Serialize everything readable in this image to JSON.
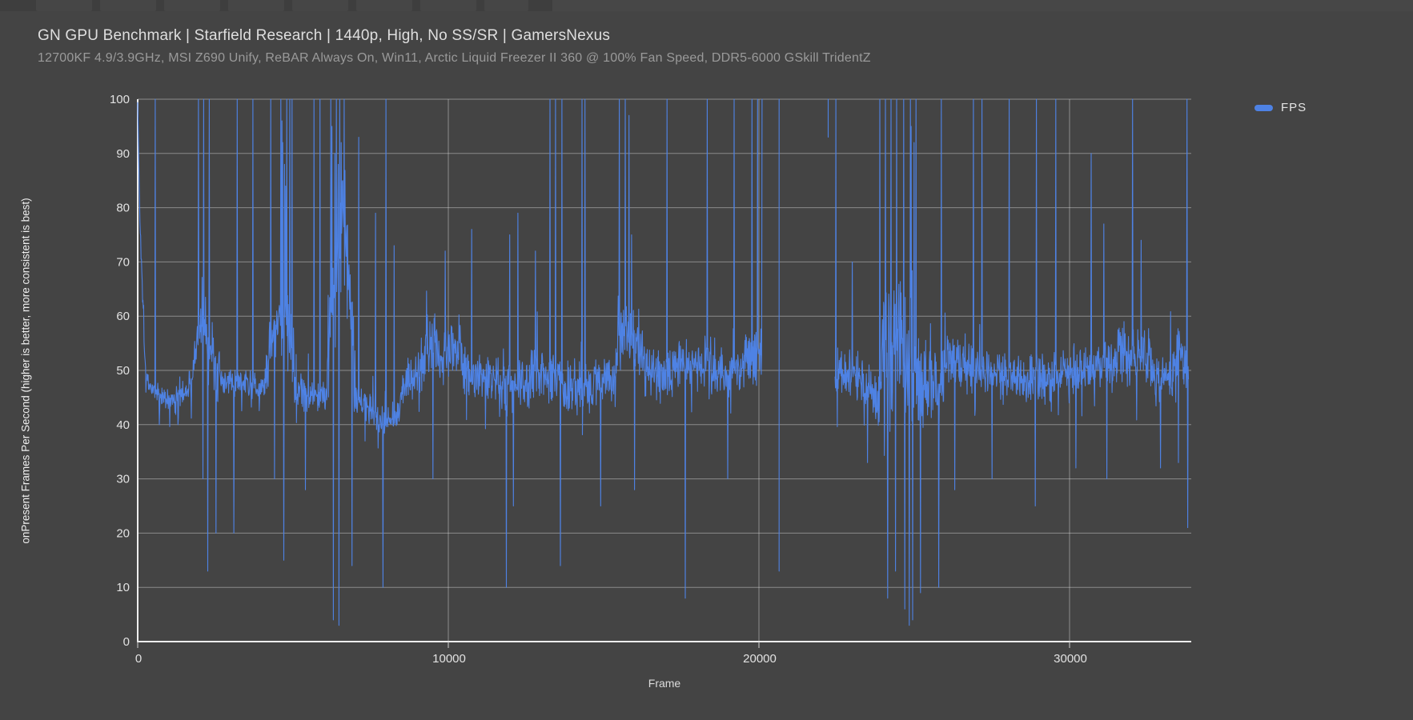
{
  "header": {
    "title": "GN GPU Benchmark | Starfield Research | 1440p, High, No SS/SR | GamersNexus",
    "subtitle": "12700KF 4.9/3.9GHz, MSI Z690 Unify, ReBAR Always On, Win11, Arctic Liquid Freezer II 360 @ 100% Fan Speed, DDR5-6000 GSkill TridentZ"
  },
  "legend": {
    "label": "FPS",
    "swatch_color": "#4e82e4"
  },
  "colors": {
    "background": "#444444",
    "plot_background": "#444444",
    "grid": "rgba(255,255,255,0.38)",
    "axis": "#eeeeee",
    "tick_text": "#e2e2e2",
    "title_text": "#dfdfdf",
    "subtitle_text": "#9a9a9a",
    "series_blue": "#4e82e4"
  },
  "chart_data": {
    "type": "line",
    "title": "GN GPU Benchmark | Starfield Research | 1440p, High, No SS/SR | GamersNexus",
    "subtitle": "12700KF 4.9/3.9GHz, MSI Z690 Unify, ReBAR Always On, Win11, Arctic Liquid Freezer II 360 @ 100% Fan Speed, DDR5-6000 GSkill TridentZ",
    "xlabel": "Frame",
    "ylabel": "onPresent Frames Per Second (higher is better, more consistent is best)",
    "xlim": [
      0,
      33830
    ],
    "ylim": [
      0,
      100
    ],
    "x_ticks": [
      0,
      10000,
      20000,
      30000
    ],
    "y_ticks": [
      0,
      10,
      20,
      30,
      40,
      50,
      60,
      70,
      80,
      90,
      100
    ],
    "grid": true,
    "legend_position": "top-right",
    "observed_behavior": {
      "typical_fps_band": [
        42,
        60
      ],
      "frequent_spike_ceiling": 100,
      "deepest_drops": [
        3,
        4,
        6
      ],
      "data_gap_frames": [
        20100,
        22450
      ]
    },
    "series": [
      {
        "name": "FPS",
        "color": "#4e82e4",
        "generator": {
          "seed": 1337,
          "step": 12,
          "gap": [
            20100,
            22450
          ],
          "segments": [
            [
              0,
              60,
              100,
              80,
              1
            ],
            [
              60,
              260,
              80,
              49,
              3
            ],
            [
              260,
              900,
              48,
              44.5,
              2.6
            ],
            [
              900,
              1700,
              44,
              46.5,
              2.6
            ],
            [
              1700,
              1950,
              47,
              56,
              4
            ],
            [
              1950,
              2200,
              57,
              59,
              6
            ],
            [
              2200,
              2650,
              56,
              49,
              7
            ],
            [
              2650,
              4100,
              47.5,
              47.5,
              3
            ],
            [
              4100,
              4400,
              49,
              58,
              6
            ],
            [
              4400,
              5050,
              59,
              53,
              9
            ],
            [
              5050,
              6100,
              47,
              45.5,
              3.6
            ],
            [
              6100,
              6700,
              55,
              80,
              14
            ],
            [
              6700,
              7000,
              72,
              50,
              12
            ],
            [
              7000,
              7650,
              45,
              43,
              4
            ],
            [
              7650,
              8450,
              40.5,
              42,
              3.6
            ],
            [
              8450,
              9250,
              46,
              51,
              5
            ],
            [
              9250,
              10450,
              55,
              54,
              6.5
            ],
            [
              10450,
              11650,
              50,
              48,
              5
            ],
            [
              11650,
              12650,
              46,
              48,
              5.5
            ],
            [
              12650,
              13650,
              50,
              49,
              6
            ],
            [
              13650,
              14650,
              47,
              46,
              6.5
            ],
            [
              14650,
              15450,
              48,
              50,
              5
            ],
            [
              15450,
              16250,
              58,
              55,
              8
            ],
            [
              16250,
              17250,
              50,
              49,
              6
            ],
            [
              17250,
              18450,
              52,
              51,
              6
            ],
            [
              18450,
              19450,
              49,
              50,
              5
            ],
            [
              19450,
              20100,
              52,
              53,
              6
            ],
            [
              22450,
              23350,
              50,
              49,
              5
            ],
            [
              23350,
              23950,
              47,
              44,
              6
            ],
            [
              23950,
              25150,
              55,
              52,
              15
            ],
            [
              25150,
              25950,
              47,
              49,
              8
            ],
            [
              25950,
              27050,
              52,
              51,
              6
            ],
            [
              27050,
              28550,
              50,
              49,
              5
            ],
            [
              28550,
              29850,
              48,
              49,
              5.5
            ],
            [
              29850,
              31550,
              50,
              51,
              5
            ],
            [
              31550,
              32650,
              54,
              52,
              6.5
            ],
            [
              32650,
              33450,
              48,
              49,
              6
            ],
            [
              33450,
              33830,
              54,
              52,
              7
            ]
          ],
          "up_spikes": [
            [
              560,
              100
            ],
            [
              1950,
              100
            ],
            [
              2120,
              100
            ],
            [
              2300,
              100
            ],
            [
              2520,
              100
            ],
            [
              3100,
              100
            ],
            [
              3200,
              100
            ],
            [
              3710,
              100
            ],
            [
              4280,
              100
            ],
            [
              4610,
              100
            ],
            [
              4640,
              96
            ],
            [
              4670,
              92
            ],
            [
              4700,
              100
            ],
            [
              4730,
              88
            ],
            [
              4760,
              84
            ],
            [
              4800,
              100
            ],
            [
              4900,
              100
            ],
            [
              4970,
              100
            ],
            [
              5670,
              100
            ],
            [
              5870,
              100
            ],
            [
              6210,
              100
            ],
            [
              6250,
              95
            ],
            [
              6300,
              100
            ],
            [
              6350,
              90
            ],
            [
              6400,
              100
            ],
            [
              6450,
              88
            ],
            [
              6500,
              100
            ],
            [
              6550,
              92
            ],
            [
              6600,
              85
            ],
            [
              6650,
              100
            ],
            [
              7120,
              93
            ],
            [
              7660,
              79
            ],
            [
              7990,
              100
            ],
            [
              8250,
              73
            ],
            [
              9900,
              72
            ],
            [
              10750,
              76
            ],
            [
              11980,
              75
            ],
            [
              12240,
              79
            ],
            [
              12800,
              72
            ],
            [
              13270,
              100
            ],
            [
              13450,
              100
            ],
            [
              13660,
              100
            ],
            [
              14300,
              100
            ],
            [
              14400,
              100
            ],
            [
              15500,
              100
            ],
            [
              15700,
              100
            ],
            [
              15820,
              97
            ],
            [
              15900,
              75
            ],
            [
              17040,
              100
            ],
            [
              18330,
              100
            ],
            [
              19200,
              100
            ],
            [
              19780,
              100
            ],
            [
              19950,
              100
            ],
            [
              22470,
              100
            ],
            [
              23000,
              70
            ],
            [
              23890,
              100
            ],
            [
              24070,
              100
            ],
            [
              24250,
              100
            ],
            [
              24430,
              100
            ],
            [
              24660,
              100
            ],
            [
              24870,
              100
            ],
            [
              24900,
              95
            ],
            [
              24950,
              100
            ],
            [
              24990,
              92
            ],
            [
              25050,
              100
            ],
            [
              25870,
              100
            ],
            [
              26900,
              100
            ],
            [
              27180,
              100
            ],
            [
              28060,
              100
            ],
            [
              28930,
              100
            ],
            [
              29550,
              100
            ],
            [
              30700,
              90
            ],
            [
              31100,
              77
            ],
            [
              32030,
              100
            ],
            [
              32300,
              74
            ],
            [
              33780,
              100
            ]
          ],
          "down_spikes": [
            [
              700,
              40
            ],
            [
              1300,
              40
            ],
            [
              2100,
              30
            ],
            [
              2250,
              13
            ],
            [
              2520,
              20
            ],
            [
              3100,
              20
            ],
            [
              4400,
              30
            ],
            [
              4700,
              15
            ],
            [
              5400,
              28
            ],
            [
              6300,
              4
            ],
            [
              6480,
              3
            ],
            [
              6900,
              14
            ],
            [
              7890,
              10
            ],
            [
              9500,
              30
            ],
            [
              11870,
              10
            ],
            [
              12100,
              25
            ],
            [
              13610,
              14
            ],
            [
              14900,
              25
            ],
            [
              16000,
              28
            ],
            [
              17630,
              8
            ],
            [
              19000,
              30
            ],
            [
              23500,
              33
            ],
            [
              24140,
              8
            ],
            [
              24400,
              13
            ],
            [
              24700,
              6
            ],
            [
              24840,
              3
            ],
            [
              24950,
              4
            ],
            [
              25200,
              9
            ],
            [
              25790,
              10
            ],
            [
              26300,
              28
            ],
            [
              27500,
              30
            ],
            [
              28900,
              25
            ],
            [
              30200,
              32
            ],
            [
              31200,
              30
            ],
            [
              32930,
              32
            ],
            [
              33500,
              33
            ],
            [
              33800,
              21
            ]
          ],
          "gap_spikes": [
            [
              20650,
              100,
              13
            ],
            [
              22230,
              100,
              93
            ]
          ]
        }
      }
    ]
  }
}
